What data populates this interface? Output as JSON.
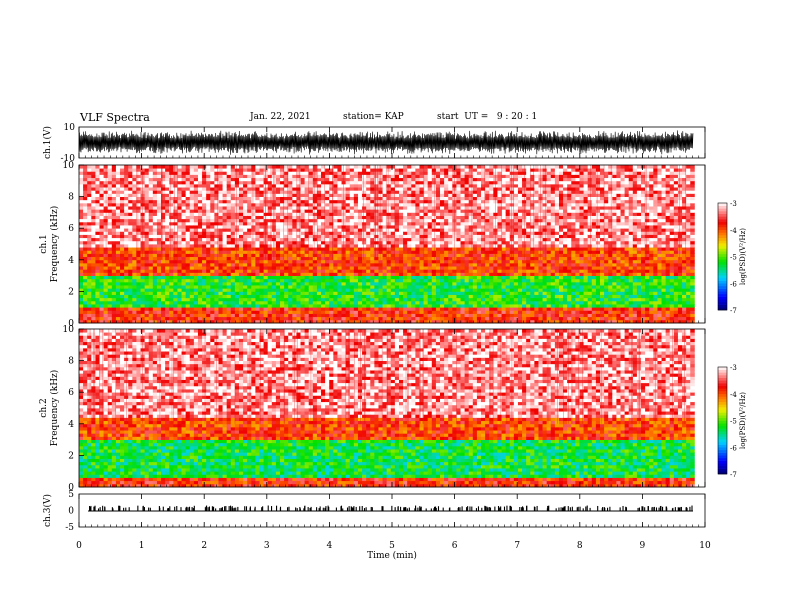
{
  "header": {
    "title": "VLF Spectra",
    "date": "Jan. 22, 2021",
    "station": "station= KAP",
    "start": "start  UT =   9 : 20 : 1"
  },
  "chart_data": [
    {
      "type": "line",
      "name": "ch1-waveform",
      "ylabel": "ch.1(V)",
      "ylim": [
        -10,
        10
      ],
      "yticks": [
        "10",
        "-10"
      ],
      "xlim": [
        0,
        10
      ],
      "envelope": {
        "upper": 8,
        "lower": -8
      }
    },
    {
      "type": "heatmap",
      "name": "ch1-spectrogram",
      "ylabel": "ch.1\nFrequency  (kHz)",
      "ylabel_lines": [
        "ch.1",
        "Frequency  (kHz)"
      ],
      "xlim": [
        0,
        9.83
      ],
      "ylim": [
        0,
        10
      ],
      "yticks": [
        "0",
        "2",
        "4",
        "6",
        "8",
        "10"
      ],
      "bands_khz": [
        {
          "from": 0,
          "to": 1.1,
          "level": -3.8
        },
        {
          "from": 1.1,
          "to": 3.0,
          "level": -5.2
        },
        {
          "from": 3.0,
          "to": 4.8,
          "level": -3.9
        },
        {
          "from": 4.8,
          "to": 10,
          "level": -3.3
        }
      ],
      "colorbar": {
        "label": "log(PSD)(V²/Hz)",
        "range": [
          -7,
          -3
        ],
        "ticks": [
          "-3",
          "-4",
          "-5",
          "-6",
          "-7"
        ]
      }
    },
    {
      "type": "heatmap",
      "name": "ch2-spectrogram",
      "ylabel": "ch.2\nFrequency  (kHz)",
      "ylabel_lines": [
        "ch.2",
        "Frequency  (kHz)"
      ],
      "xlim": [
        0,
        9.83
      ],
      "ylim": [
        0,
        10
      ],
      "yticks": [
        "0",
        "2",
        "4",
        "6",
        "8",
        "10"
      ],
      "bands_khz": [
        {
          "from": 0,
          "to": 0.6,
          "level": -3.8
        },
        {
          "from": 0.6,
          "to": 3.0,
          "level": -5.3
        },
        {
          "from": 3.0,
          "to": 4.5,
          "level": -3.9
        },
        {
          "from": 4.5,
          "to": 10,
          "level": -3.3
        }
      ],
      "colorbar": {
        "label": "log(PSD)(V²/Hz)",
        "range": [
          -7,
          -3
        ],
        "ticks": [
          "-3",
          "-4",
          "-5",
          "-6",
          "-7"
        ]
      }
    },
    {
      "type": "line",
      "name": "ch3-waveform",
      "ylabel": "ch.3(V)",
      "ylim": [
        -5,
        5
      ],
      "yticks": [
        "5",
        "0",
        "-5"
      ],
      "xlim": [
        0,
        10
      ],
      "level_v": 0
    }
  ],
  "xaxis": {
    "label": "Time  (min)",
    "ticks": [
      "0",
      "1",
      "2",
      "3",
      "4",
      "5",
      "6",
      "7",
      "8",
      "9",
      "10"
    ],
    "range": [
      0,
      10
    ]
  }
}
